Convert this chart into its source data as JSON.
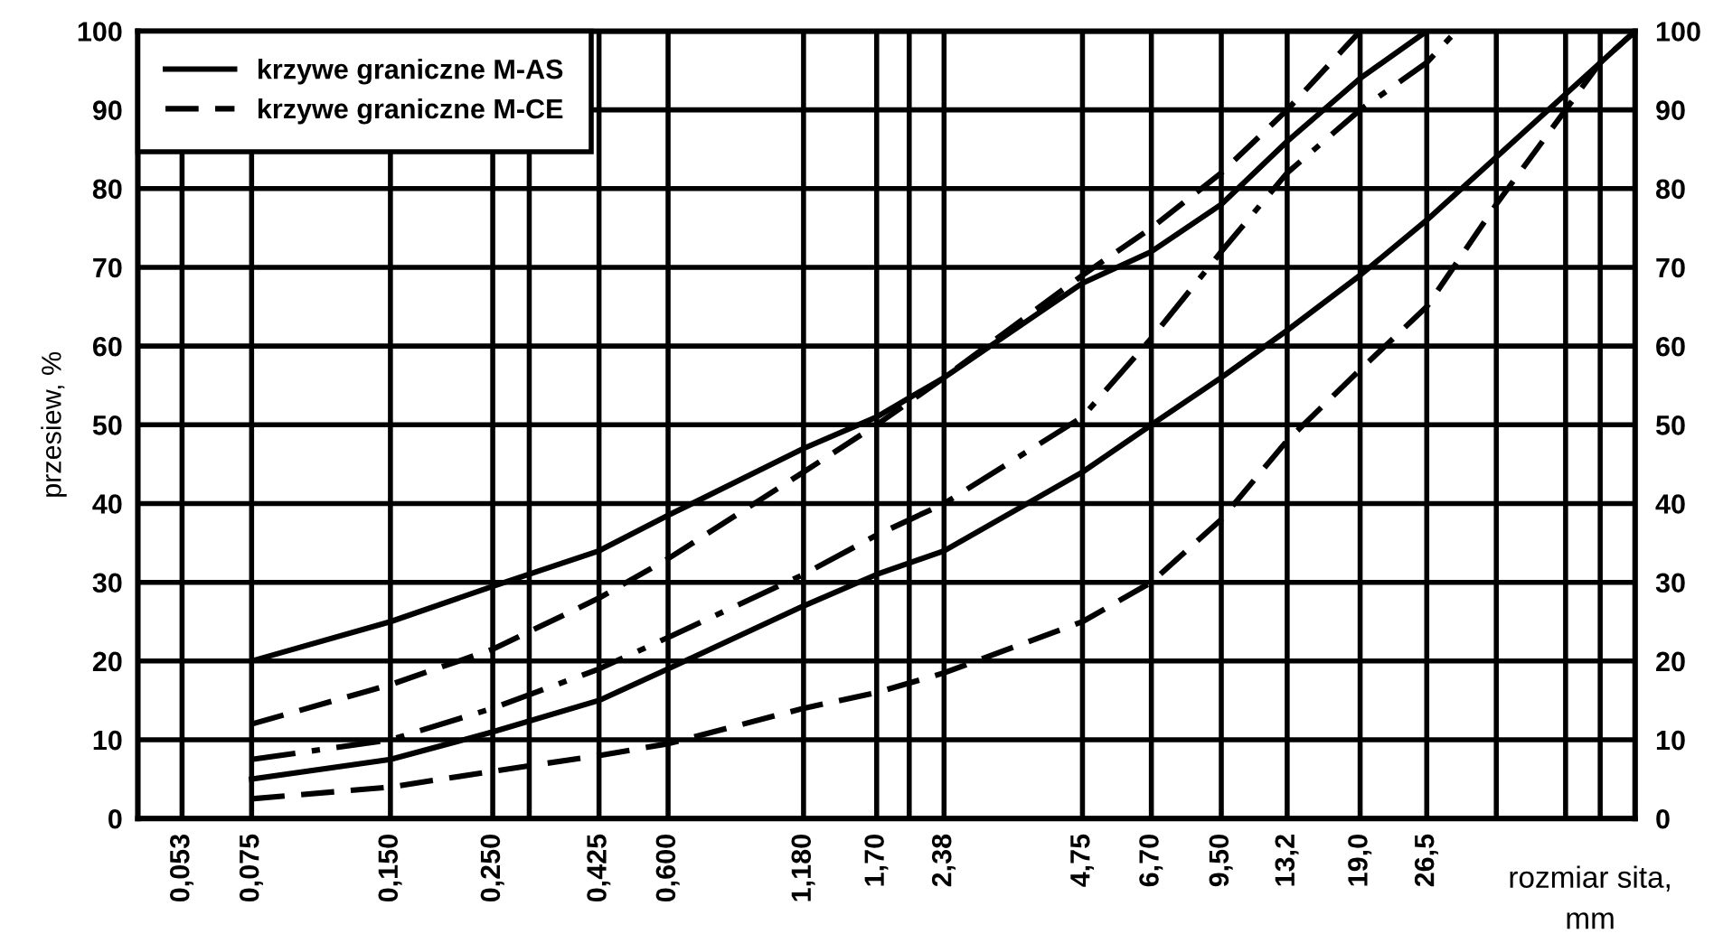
{
  "chart_data": {
    "type": "line",
    "xlabel": "rozmiar sita,\nmm",
    "ylabel": "przesiew, %",
    "log": "x",
    "grid": true,
    "legend": "top left",
    "xlim": [
      0.0425,
      75
    ],
    "ylim": [
      0,
      100
    ],
    "y2lim": [
      0,
      100
    ],
    "xticks": [
      {
        "value": 0.053,
        "label": "0,053"
      },
      {
        "value": 0.075,
        "label": "0,075"
      },
      {
        "value": 0.15,
        "label": "0,150"
      },
      {
        "value": 0.25,
        "label": "0,250"
      },
      {
        "value": 0.3,
        "label": null
      },
      {
        "value": 0.425,
        "label": "0,425"
      },
      {
        "value": 0.6,
        "label": "0,600"
      },
      {
        "value": 1.18,
        "label": "1,180"
      },
      {
        "value": 1.7,
        "label": "1,70"
      },
      {
        "value": 2.0,
        "label": null
      },
      {
        "value": 2.38,
        "label": "2,38"
      },
      {
        "value": 4.75,
        "label": "4,75"
      },
      {
        "value": 6.7,
        "label": "6,70"
      },
      {
        "value": 9.5,
        "label": "9,50"
      },
      {
        "value": 13.2,
        "label": "13,2"
      },
      {
        "value": 19.0,
        "label": "19,0"
      },
      {
        "value": 26.5,
        "label": "26,5"
      },
      {
        "value": 37.5,
        "label": null
      },
      {
        "value": 53,
        "label": null
      },
      {
        "value": 63,
        "label": null
      }
    ],
    "yticks": [
      0,
      10,
      20,
      30,
      40,
      50,
      60,
      70,
      80,
      90,
      100
    ],
    "y2ticks": [
      0,
      10,
      20,
      30,
      40,
      50,
      60,
      70,
      80,
      90,
      100
    ],
    "series": [
      {
        "name": "krzywe graniczne M-AS",
        "color": "#000000",
        "line_style": "solid",
        "x": [
          0.075,
          0.15,
          0.25,
          0.425,
          0.6,
          1.18,
          1.7,
          2.38,
          4.75,
          6.7,
          9.5,
          13.2,
          19.0,
          26.5
        ],
        "values": [
          20,
          25,
          29.5,
          34,
          38.5,
          47,
          51,
          56,
          68,
          72,
          78,
          86,
          94,
          100
        ]
      },
      {
        "name": "krzywe graniczne M-CE",
        "color": "#000000",
        "line_style": "dashed",
        "x": [
          0.075,
          0.15,
          0.25,
          0.425,
          0.6,
          1.18,
          1.7,
          2.38,
          4.75,
          6.7,
          9.5,
          13.2,
          19.0
        ],
        "values": [
          12,
          17,
          21.5,
          28,
          33,
          44,
          50,
          56,
          69,
          75,
          82,
          90,
          100
        ]
      },
      {
        "color": "#000000",
        "line_style": "dashdot",
        "x": [
          0.075,
          0.15,
          0.25,
          0.425,
          0.6,
          1.18,
          1.7,
          2.38,
          4.75,
          6.7,
          9.5,
          13.2,
          19.0,
          26.5,
          30.7
        ],
        "values": [
          7.5,
          10,
          14,
          19,
          23,
          31,
          36,
          40,
          51,
          61,
          72,
          82,
          90,
          96,
          100
        ]
      },
      {
        "color": "#000000",
        "line_style": "solid",
        "x": [
          0.075,
          0.15,
          0.25,
          0.425,
          0.6,
          1.18,
          1.7,
          2.38,
          4.75,
          6.7,
          9.5,
          13.2,
          19.0,
          26.5,
          37.5,
          53,
          75
        ],
        "values": [
          5,
          7.5,
          11,
          15,
          19,
          27,
          31,
          34,
          44,
          50,
          56,
          62,
          69,
          76,
          84,
          92,
          100
        ]
      },
      {
        "color": "#000000",
        "line_style": "dashed",
        "x": [
          0.075,
          0.15,
          0.25,
          0.425,
          0.6,
          1.18,
          1.7,
          2.38,
          4.75,
          6.7,
          9.5,
          13.2,
          19.0,
          26.5,
          37.5,
          53,
          63,
          75
        ],
        "values": [
          2.5,
          4,
          6,
          8,
          9.5,
          14,
          16,
          18.5,
          25,
          30,
          38,
          48,
          57,
          65,
          78,
          90,
          96,
          100
        ]
      }
    ]
  }
}
